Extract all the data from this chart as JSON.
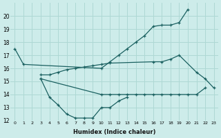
{
  "xlabel": "Humidex (Indice chaleur)",
  "background_color": "#cdecea",
  "grid_color": "#aed8d4",
  "line_color": "#1a6060",
  "x_values": [
    0,
    1,
    2,
    3,
    4,
    5,
    6,
    7,
    8,
    9,
    10,
    11,
    12,
    13,
    14,
    15,
    16,
    17,
    18,
    19,
    20,
    21,
    22,
    23
  ],
  "series1": [
    17.5,
    16.3,
    null,
    null,
    null,
    null,
    null,
    null,
    null,
    null,
    16.0,
    16.5,
    17.0,
    17.5,
    18.0,
    18.5,
    19.2,
    19.3,
    19.3,
    19.5,
    20.5,
    null,
    null,
    null
  ],
  "series2": [
    null,
    null,
    null,
    15.2,
    13.8,
    13.2,
    12.5,
    12.2,
    12.2,
    12.2,
    13.0,
    13.0,
    13.5,
    13.8,
    null,
    null,
    null,
    null,
    null,
    null,
    null,
    null,
    null,
    null
  ],
  "series3": [
    null,
    null,
    null,
    15.2,
    null,
    null,
    null,
    null,
    null,
    null,
    14.0,
    14.0,
    14.0,
    14.0,
    14.0,
    14.0,
    14.0,
    14.0,
    14.0,
    14.0,
    14.0,
    14.0,
    14.5,
    null
  ],
  "series4": [
    null,
    null,
    null,
    15.5,
    15.5,
    15.7,
    15.9,
    16.0,
    16.1,
    16.2,
    16.3,
    16.4,
    null,
    null,
    null,
    null,
    16.5,
    16.5,
    16.7,
    17.0,
    null,
    15.7,
    15.2,
    14.5
  ],
  "ylim": [
    12,
    21
  ],
  "xlim": [
    -0.5,
    23.5
  ],
  "yticks": [
    12,
    13,
    14,
    15,
    16,
    17,
    18,
    19,
    20
  ],
  "xticks": [
    0,
    1,
    2,
    3,
    4,
    5,
    6,
    7,
    8,
    9,
    10,
    11,
    12,
    13,
    14,
    15,
    16,
    17,
    18,
    19,
    20,
    21,
    22,
    23
  ]
}
